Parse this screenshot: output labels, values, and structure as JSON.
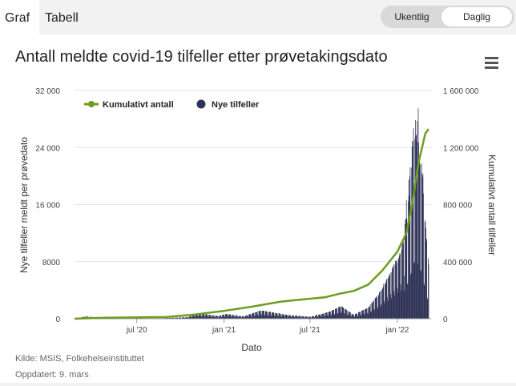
{
  "tabs": [
    {
      "label": "Graf",
      "active": true
    },
    {
      "label": "Tabell",
      "active": false
    }
  ],
  "toggle": {
    "options": [
      {
        "label": "Ukentlig",
        "selected": false
      },
      {
        "label": "Daglig",
        "selected": true
      }
    ]
  },
  "menu_icon": "hamburger-menu-icon",
  "chart_data": {
    "type": "bar+line",
    "title": "Antall meldte covid-19 tilfeller etter prøvetakingsdato",
    "xlabel": "Dato",
    "ylabel_left": "Nye tilfeller meldt per prøvedato",
    "ylabel_right": "Kumulativt antall tilfeller",
    "x_range": [
      "2020-02-21",
      "2022-03-08"
    ],
    "x_ticks": [
      {
        "date": "2020-07-01",
        "label": "jul '20"
      },
      {
        "date": "2021-01-01",
        "label": "jan '21"
      },
      {
        "date": "2021-07-01",
        "label": "jul '21"
      },
      {
        "date": "2022-01-01",
        "label": "jan '22"
      }
    ],
    "y_left": {
      "min": 0,
      "max": 32000,
      "ticks": [
        0,
        8000,
        16000,
        24000,
        32000
      ],
      "tick_labels": [
        "0",
        "8000",
        "16 000",
        "24 000",
        "32 000"
      ]
    },
    "y_right": {
      "min": 0,
      "max": 1600000,
      "ticks": [
        0,
        400000,
        800000,
        1200000,
        1600000
      ],
      "tick_labels": [
        "0",
        "400 000",
        "800 000",
        "1 200 000",
        "1 600 000"
      ]
    },
    "grid": true,
    "legend_placement": "top-left",
    "colors": {
      "cumulative": "#6b9e1f",
      "daily": "#2f3357"
    },
    "series": [
      {
        "name": "Kumulativt antall",
        "axis": "right",
        "kind": "line",
        "points": [
          {
            "date": "2020-02-21",
            "value": 0
          },
          {
            "date": "2020-04-01",
            "value": 5000
          },
          {
            "date": "2020-06-01",
            "value": 8500
          },
          {
            "date": "2020-09-01",
            "value": 12000
          },
          {
            "date": "2020-11-01",
            "value": 30000
          },
          {
            "date": "2021-01-01",
            "value": 55000
          },
          {
            "date": "2021-03-01",
            "value": 85000
          },
          {
            "date": "2021-05-01",
            "value": 120000
          },
          {
            "date": "2021-06-01",
            "value": 130000
          },
          {
            "date": "2021-08-01",
            "value": 150000
          },
          {
            "date": "2021-09-01",
            "value": 175000
          },
          {
            "date": "2021-10-01",
            "value": 195000
          },
          {
            "date": "2021-11-01",
            "value": 240000
          },
          {
            "date": "2021-12-01",
            "value": 340000
          },
          {
            "date": "2022-01-01",
            "value": 470000
          },
          {
            "date": "2022-01-20",
            "value": 600000
          },
          {
            "date": "2022-02-01",
            "value": 800000
          },
          {
            "date": "2022-02-15",
            "value": 1100000
          },
          {
            "date": "2022-03-01",
            "value": 1300000
          },
          {
            "date": "2022-03-08",
            "value": 1330000
          }
        ]
      },
      {
        "name": "Nye tilfeller",
        "axis": "left",
        "kind": "bar",
        "daily_profile": [
          {
            "date": "2020-02-21",
            "value": 0
          },
          {
            "date": "2020-03-15",
            "value": 300
          },
          {
            "date": "2020-05-01",
            "value": 30
          },
          {
            "date": "2020-08-15",
            "value": 60
          },
          {
            "date": "2020-10-15",
            "value": 200
          },
          {
            "date": "2020-11-10",
            "value": 700
          },
          {
            "date": "2020-12-20",
            "value": 350
          },
          {
            "date": "2021-01-05",
            "value": 650
          },
          {
            "date": "2021-02-10",
            "value": 300
          },
          {
            "date": "2021-03-20",
            "value": 1100
          },
          {
            "date": "2021-05-15",
            "value": 500
          },
          {
            "date": "2021-07-01",
            "value": 250
          },
          {
            "date": "2021-08-10",
            "value": 900
          },
          {
            "date": "2021-09-05",
            "value": 1700
          },
          {
            "date": "2021-10-01",
            "value": 500
          },
          {
            "date": "2021-11-01",
            "value": 1500
          },
          {
            "date": "2021-11-25",
            "value": 3500
          },
          {
            "date": "2021-12-20",
            "value": 6500
          },
          {
            "date": "2022-01-10",
            "value": 9000
          },
          {
            "date": "2022-01-25",
            "value": 15000
          },
          {
            "date": "2022-02-08",
            "value": 24000
          },
          {
            "date": "2022-02-20",
            "value": 19000
          },
          {
            "date": "2022-03-08",
            "value": 6000
          }
        ],
        "peak": {
          "date": "2022-02-14",
          "value": 29500
        }
      }
    ]
  },
  "footer": {
    "source": "Kilde: MSIS, Folkehelseinstituttet",
    "updated": "Oppdatert: 9. mars"
  }
}
